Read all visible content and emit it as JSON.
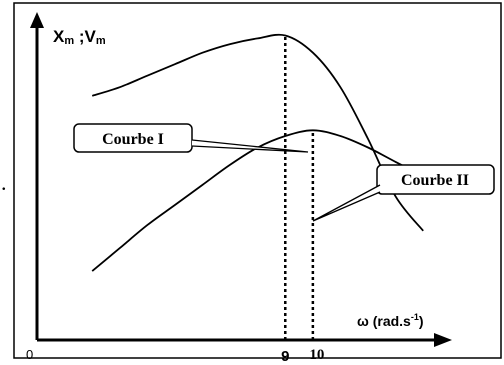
{
  "chart_data": {
    "type": "line",
    "ylabel": "X",
    "ylabel_sub": "m",
    "ylabel_sep": " ;V",
    "ylabel_sub2": "m",
    "xlabel": "ω  (rad.s",
    "xlabel_sup": "-1",
    "xlabel_end": ")",
    "origin_label": "0",
    "xticks": [
      {
        "label": "9",
        "value": 9
      },
      {
        "label": "10",
        "value": 10
      }
    ],
    "xlim": [
      0,
      14.5
    ],
    "ylim": [
      0,
      1.1
    ],
    "series": [
      {
        "name": "Courbe I",
        "peak_x": 9,
        "x": [
          2,
          3,
          4,
          5,
          6,
          7,
          8,
          9,
          10,
          11,
          12,
          13,
          14
        ],
        "y": [
          0.85,
          0.88,
          0.92,
          0.96,
          1.0,
          1.03,
          1.05,
          1.06,
          1.0,
          0.88,
          0.7,
          0.5,
          0.38
        ]
      },
      {
        "name": "Courbe II",
        "peak_x": 10,
        "x": [
          2,
          3,
          4,
          5,
          6,
          7,
          8,
          9,
          10,
          11,
          12,
          13,
          14
        ],
        "y": [
          0.24,
          0.32,
          0.4,
          0.47,
          0.54,
          0.61,
          0.67,
          0.71,
          0.73,
          0.71,
          0.67,
          0.62,
          0.57
        ]
      }
    ],
    "annotations": {
      "stray_mark": "."
    }
  }
}
